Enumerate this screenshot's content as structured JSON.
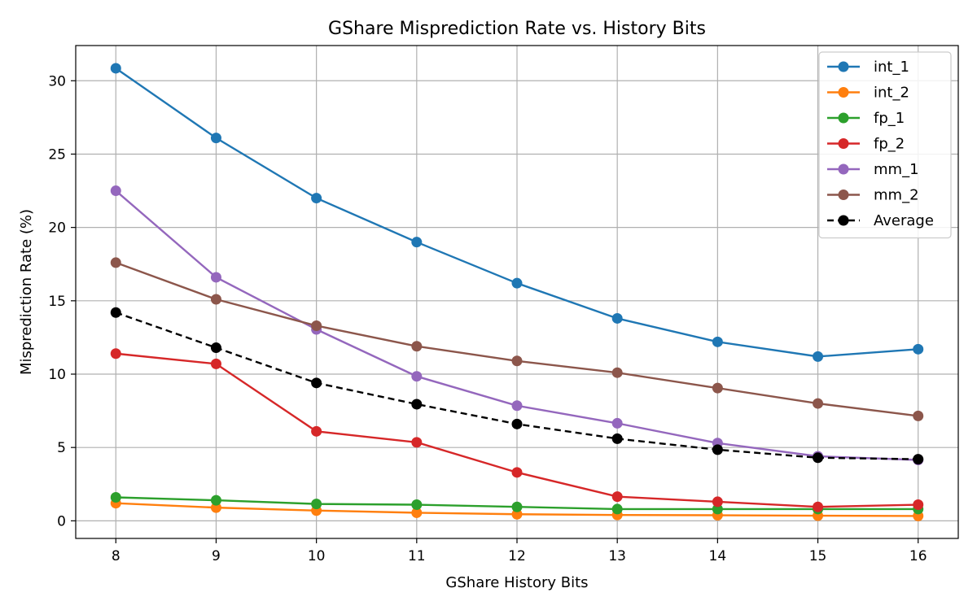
{
  "chart_data": {
    "type": "line",
    "title": "GShare Misprediction Rate vs. History Bits",
    "xlabel": "GShare History Bits",
    "ylabel": "Misprediction Rate (%)",
    "x": [
      8,
      9,
      10,
      11,
      12,
      13,
      14,
      15,
      16
    ],
    "xlim": [
      7.6,
      16.4
    ],
    "ylim": [
      -1.2,
      32.4
    ],
    "yticks": [
      0,
      5,
      10,
      15,
      20,
      25,
      30
    ],
    "grid": true,
    "legend_position": "top-right",
    "series": [
      {
        "name": "int_1",
        "color": "#1f77b4",
        "dashed": false,
        "values": [
          30.85,
          26.1,
          22.0,
          19.0,
          16.2,
          13.8,
          12.2,
          11.2,
          11.7
        ]
      },
      {
        "name": "int_2",
        "color": "#ff7f0e",
        "dashed": false,
        "values": [
          1.2,
          0.9,
          0.7,
          0.55,
          0.45,
          0.4,
          0.38,
          0.35,
          0.33
        ]
      },
      {
        "name": "fp_1",
        "color": "#2ca02c",
        "dashed": false,
        "values": [
          1.6,
          1.4,
          1.15,
          1.1,
          0.95,
          0.8,
          0.8,
          0.8,
          0.8
        ]
      },
      {
        "name": "fp_2",
        "color": "#d62728",
        "dashed": false,
        "values": [
          11.4,
          10.7,
          6.1,
          5.35,
          3.3,
          1.65,
          1.3,
          0.95,
          1.1
        ]
      },
      {
        "name": "mm_1",
        "color": "#9467bd",
        "dashed": false,
        "values": [
          22.5,
          16.6,
          13.05,
          9.85,
          7.85,
          6.65,
          5.3,
          4.4,
          4.15
        ]
      },
      {
        "name": "mm_2",
        "color": "#8c564b",
        "dashed": false,
        "values": [
          17.6,
          15.1,
          13.3,
          11.9,
          10.9,
          10.1,
          9.05,
          8.0,
          7.15
        ]
      },
      {
        "name": "Average",
        "color": "#000000",
        "dashed": true,
        "values": [
          14.2,
          11.8,
          9.4,
          7.95,
          6.6,
          5.6,
          4.85,
          4.3,
          4.2
        ]
      }
    ]
  }
}
